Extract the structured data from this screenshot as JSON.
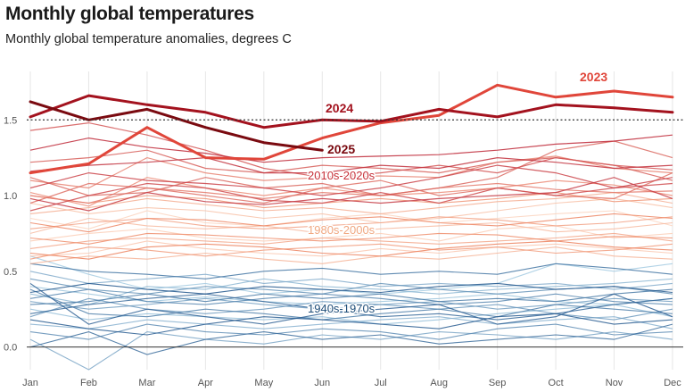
{
  "chart_data": {
    "type": "line",
    "title": "Monthly global temperatures",
    "subtitle": "Monthly global temperature anomalies, degrees C",
    "categories": [
      "Jan",
      "Feb",
      "Mar",
      "Apr",
      "May",
      "Jun",
      "Jul",
      "Aug",
      "Sep",
      "Oct",
      "Nov",
      "Dec"
    ],
    "ylim": [
      -0.15,
      1.82
    ],
    "yticks": [
      0.0,
      0.5,
      1.0,
      1.5
    ],
    "ytick_labels": [
      "0.0",
      "0.5",
      "1.0",
      "1.5"
    ],
    "reference_lines": [
      {
        "value": 1.5,
        "style": "dotted"
      },
      {
        "value": 0.0,
        "style": "solid"
      }
    ],
    "colors": {
      "y2025": "#7a0a10",
      "y2024": "#a3121e",
      "y2023": "#e0463a",
      "warm_label": "#c62f38",
      "mid_label": "#f0a882",
      "cool_label": "#1f4e79",
      "grid": "#e6e6e6",
      "axis": "#333333"
    },
    "highlighted_series": [
      {
        "name": "2023",
        "label": "2023",
        "color": "#e0463a",
        "values": [
          1.15,
          1.21,
          1.45,
          1.25,
          1.24,
          1.38,
          1.48,
          1.53,
          1.73,
          1.65,
          1.69,
          1.65
        ]
      },
      {
        "name": "2024",
        "label": "2024",
        "color": "#a3121e",
        "values": [
          1.52,
          1.66,
          1.6,
          1.55,
          1.45,
          1.5,
          1.49,
          1.57,
          1.52,
          1.6,
          1.58,
          1.55
        ]
      },
      {
        "name": "2025",
        "label": "2025",
        "color": "#7a0a10",
        "values": [
          1.62,
          1.5,
          1.57,
          1.45,
          1.35,
          1.3
        ]
      }
    ],
    "group_labels": [
      {
        "label": "2010s-2020s",
        "color": "#c62f38"
      },
      {
        "label": "1980s-2000s",
        "color": "#f0a882"
      },
      {
        "label": "1940s-1970s",
        "color": "#1f4e79"
      }
    ],
    "background_series": {
      "group_2010s_2020s": [
        [
          1.02,
          0.93,
          1.12,
          1.05,
          1.0,
          1.05,
          1.0,
          1.02,
          1.05,
          1.1,
          1.07,
          1.0
        ],
        [
          1.1,
          1.05,
          1.25,
          1.15,
          1.1,
          1.12,
          1.13,
          1.12,
          1.22,
          1.26,
          1.18,
          1.15
        ],
        [
          1.0,
          0.95,
          1.05,
          1.02,
          0.98,
          1.02,
          1.0,
          1.05,
          1.08,
          1.04,
          1.02,
          1.03
        ],
        [
          0.95,
          1.08,
          1.05,
          1.0,
          0.95,
          1.05,
          1.1,
          1.0,
          1.05,
          1.0,
          0.98,
          1.15
        ],
        [
          1.12,
          1.0,
          1.02,
          1.12,
          1.05,
          1.08,
          1.0,
          1.05,
          1.12,
          1.3,
          1.36,
          1.25
        ],
        [
          1.22,
          1.25,
          1.3,
          1.18,
          1.15,
          1.2,
          1.18,
          1.15,
          1.22,
          1.25,
          1.2,
          1.1
        ],
        [
          1.43,
          1.48,
          1.4,
          1.3,
          1.18,
          1.12,
          1.15,
          1.2,
          1.15,
          1.25,
          1.2,
          1.17
        ],
        [
          0.9,
          1.0,
          1.08,
          1.05,
          0.97,
          0.95,
          1.02,
          0.95,
          1.05,
          1.0,
          1.05,
          1.08
        ],
        [
          1.05,
          1.15,
          1.1,
          1.08,
          1.05,
          1.0,
          1.05,
          1.12,
          1.2,
          1.15,
          1.05,
          1.12
        ],
        [
          0.98,
          0.9,
          1.02,
          0.96,
          0.94,
          0.98,
          0.95,
          0.98,
          1.0,
          1.02,
          1.12,
          0.98
        ],
        [
          1.16,
          1.2,
          1.22,
          1.25,
          1.15,
          1.15,
          1.2,
          1.18,
          1.25,
          1.22,
          1.18,
          1.2
        ],
        [
          1.3,
          1.38,
          1.32,
          1.28,
          1.22,
          1.25,
          1.26,
          1.27,
          1.3,
          1.34,
          1.36,
          1.4
        ]
      ],
      "group_1980s_2000s": [
        [
          0.85,
          0.78,
          0.9,
          0.82,
          0.8,
          0.85,
          0.88,
          0.82,
          0.85,
          0.88,
          0.9,
          0.8
        ],
        [
          0.7,
          0.75,
          0.78,
          0.72,
          0.7,
          0.72,
          0.75,
          0.7,
          0.78,
          0.8,
          0.72,
          0.75
        ],
        [
          0.6,
          0.62,
          0.7,
          0.65,
          0.62,
          0.6,
          0.65,
          0.62,
          0.66,
          0.68,
          0.65,
          0.62
        ],
        [
          0.95,
          0.88,
          0.92,
          0.9,
          0.85,
          0.88,
          0.82,
          0.85,
          0.9,
          0.95,
          0.98,
          0.92
        ],
        [
          0.75,
          0.85,
          0.8,
          0.78,
          0.8,
          0.75,
          0.78,
          0.8,
          0.82,
          0.76,
          0.78,
          0.82
        ],
        [
          0.55,
          0.6,
          0.58,
          0.62,
          0.58,
          0.55,
          0.6,
          0.58,
          0.62,
          0.66,
          0.6,
          0.58
        ],
        [
          0.88,
          0.92,
          0.98,
          0.94,
          0.9,
          0.92,
          0.88,
          0.92,
          0.96,
          0.98,
          1.02,
          0.95
        ],
        [
          0.65,
          0.7,
          0.72,
          0.7,
          0.68,
          0.72,
          0.7,
          0.68,
          0.7,
          0.72,
          0.75,
          0.7
        ],
        [
          0.78,
          0.82,
          0.85,
          0.8,
          0.78,
          0.8,
          0.82,
          0.86,
          0.84,
          0.8,
          0.82,
          0.86
        ],
        [
          0.58,
          0.66,
          0.64,
          0.6,
          0.64,
          0.66,
          0.68,
          0.64,
          0.66,
          0.62,
          0.64,
          0.68
        ],
        [
          1.0,
          0.95,
          1.0,
          0.98,
          0.92,
          0.95,
          0.98,
          0.95,
          0.98,
          1.02,
          0.96,
          0.98
        ],
        [
          0.72,
          0.68,
          0.75,
          0.74,
          0.72,
          0.7,
          0.72,
          0.75,
          0.74,
          0.7,
          0.73,
          0.72
        ],
        [
          0.82,
          0.76,
          0.85,
          0.84,
          0.8,
          0.84,
          0.86,
          0.82,
          0.8,
          0.84,
          0.88,
          0.85
        ],
        [
          0.62,
          0.58,
          0.66,
          0.68,
          0.66,
          0.62,
          0.6,
          0.65,
          0.68,
          0.7,
          0.66,
          0.64
        ]
      ],
      "group_1940s_1970s": [
        [
          0.6,
          0.48,
          0.38,
          0.42,
          0.35,
          0.38,
          0.35,
          0.38,
          0.42,
          0.55,
          0.5,
          0.55
        ],
        [
          0.4,
          0.35,
          0.3,
          0.33,
          0.3,
          0.28,
          0.3,
          0.32,
          0.35,
          0.3,
          0.28,
          0.32
        ],
        [
          0.25,
          0.18,
          0.22,
          0.2,
          0.18,
          0.2,
          0.15,
          0.18,
          0.22,
          0.25,
          0.28,
          0.2
        ],
        [
          0.35,
          0.28,
          0.4,
          0.38,
          0.45,
          0.4,
          0.38,
          0.35,
          0.38,
          0.4,
          0.42,
          0.45
        ],
        [
          0.15,
          0.12,
          0.18,
          0.15,
          0.12,
          0.15,
          0.18,
          0.2,
          0.15,
          0.18,
          0.2,
          0.12
        ],
        [
          0.5,
          0.42,
          0.45,
          0.48,
          0.42,
          0.45,
          0.4,
          0.42,
          0.4,
          0.42,
          0.38,
          0.42
        ],
        [
          0.05,
          -0.15,
          0.1,
          0.05,
          0.02,
          0.08,
          0.05,
          0.1,
          0.08,
          0.05,
          0.1,
          0.05
        ],
        [
          0.3,
          0.25,
          0.28,
          0.32,
          0.28,
          0.25,
          0.28,
          0.3,
          0.25,
          0.28,
          0.32,
          0.3
        ],
        [
          0.2,
          0.32,
          0.25,
          0.22,
          0.25,
          0.3,
          0.28,
          0.25,
          0.28,
          0.22,
          0.18,
          0.25
        ],
        [
          0.45,
          0.38,
          0.35,
          0.4,
          0.38,
          0.35,
          0.42,
          0.38,
          0.35,
          0.38,
          0.4,
          0.35
        ],
        [
          0.1,
          0.05,
          0.15,
          0.1,
          0.08,
          0.12,
          0.1,
          0.05,
          0.12,
          0.15,
          0.08,
          0.1
        ],
        [
          0.32,
          0.38,
          0.3,
          0.28,
          0.32,
          0.35,
          0.32,
          0.28,
          0.3,
          0.35,
          0.3,
          0.28
        ],
        [
          0.38,
          0.22,
          0.2,
          0.25,
          0.22,
          0.18,
          0.22,
          0.25,
          0.2,
          0.28,
          0.25,
          0.22
        ],
        [
          0.28,
          0.3,
          0.35,
          0.3,
          0.35,
          0.32,
          0.35,
          0.3,
          0.32,
          0.3,
          0.35,
          0.38
        ],
        [
          0.55,
          0.5,
          0.48,
          0.45,
          0.5,
          0.52,
          0.48,
          0.5,
          0.48,
          0.55,
          0.52,
          0.48
        ],
        [
          0.0,
          0.1,
          -0.05,
          0.05,
          0.1,
          0.05,
          0.08,
          0.02,
          0.05,
          0.08,
          0.05,
          0.15
        ],
        [
          0.22,
          0.28,
          0.32,
          0.35,
          0.3,
          0.25,
          0.2,
          0.22,
          0.18,
          0.22,
          0.28,
          0.32
        ],
        [
          0.42,
          0.15,
          0.25,
          0.2,
          0.15,
          0.22,
          0.25,
          0.28,
          0.15,
          0.2,
          0.35,
          0.2
        ],
        [
          0.18,
          0.12,
          0.08,
          0.15,
          0.2,
          0.18,
          0.15,
          0.12,
          0.2,
          0.22,
          0.15,
          0.18
        ],
        [
          0.36,
          0.42,
          0.38,
          0.35,
          0.4,
          0.38,
          0.36,
          0.4,
          0.42,
          0.38,
          0.4,
          0.36
        ]
      ]
    }
  }
}
